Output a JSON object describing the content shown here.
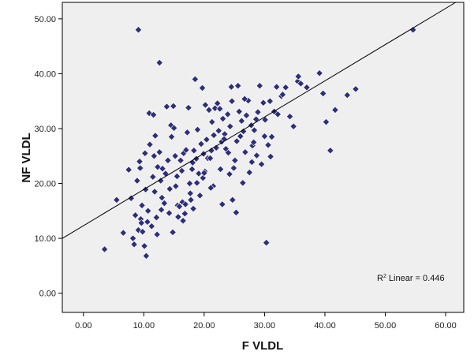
{
  "chart_data": {
    "type": "scatter",
    "xlabel": "F VLDL",
    "ylabel": "NF VLDL",
    "xlim": [
      -3.5,
      63
    ],
    "ylim": [
      -3.5,
      53
    ],
    "x_ticks": [
      "0.00",
      "10.00",
      "20.00",
      "30.00",
      "40.00",
      "50.00",
      "60.00"
    ],
    "y_ticks": [
      "0.00",
      "10.00",
      "20.00",
      "30.00",
      "40.00",
      "50.00"
    ],
    "grid": false,
    "annotation": {
      "prefix": "R",
      "sup": "2",
      "suffix": " Linear = 0.446"
    },
    "fit_line": {
      "intercept": 12.3,
      "slope": 0.66
    },
    "colors": {
      "point": "#2e2e7a",
      "plot_bg": "#efefef",
      "line": "#000000"
    },
    "points": [
      [
        9.1,
        48.0
      ],
      [
        54.6,
        48.0
      ],
      [
        12.6,
        42.0
      ],
      [
        3.5,
        8.0
      ],
      [
        5.5,
        17.0
      ],
      [
        6.6,
        11.0
      ],
      [
        7.5,
        22.5
      ],
      [
        7.9,
        17.3
      ],
      [
        8.2,
        10.0
      ],
      [
        8.4,
        8.9
      ],
      [
        8.6,
        14.2
      ],
      [
        8.9,
        20.5
      ],
      [
        9.1,
        11.5
      ],
      [
        9.3,
        24.0
      ],
      [
        9.4,
        22.8
      ],
      [
        9.5,
        13.5
      ],
      [
        9.7,
        16.0
      ],
      [
        9.8,
        11.2
      ],
      [
        10.1,
        8.6
      ],
      [
        10.2,
        25.5
      ],
      [
        10.4,
        6.8
      ],
      [
        10.6,
        13.0
      ],
      [
        10.7,
        15.0
      ],
      [
        10.9,
        32.8
      ],
      [
        11.0,
        27.1
      ],
      [
        11.3,
        12.2
      ],
      [
        11.5,
        21.2
      ],
      [
        11.6,
        32.5
      ],
      [
        11.7,
        25.0
      ],
      [
        11.8,
        18.5
      ],
      [
        12.1,
        13.8
      ],
      [
        12.3,
        23.0
      ],
      [
        12.6,
        25.7
      ],
      [
        12.8,
        20.5
      ],
      [
        13.0,
        17.4
      ],
      [
        13.1,
        22.7
      ],
      [
        13.4,
        16.4
      ],
      [
        13.8,
        34.0
      ],
      [
        14.0,
        24.2
      ],
      [
        14.2,
        14.6
      ],
      [
        14.5,
        30.6
      ],
      [
        14.8,
        11.1
      ],
      [
        14.9,
        34.1
      ],
      [
        15.0,
        30.1
      ],
      [
        15.2,
        25.0
      ],
      [
        15.3,
        19.5
      ],
      [
        15.5,
        21.3
      ],
      [
        15.6,
        16.0
      ],
      [
        15.9,
        15.8
      ],
      [
        16.1,
        24.2
      ],
      [
        16.3,
        22.3
      ],
      [
        16.4,
        16.6
      ],
      [
        16.6,
        25.5
      ],
      [
        16.8,
        14.5
      ],
      [
        17.0,
        26.1
      ],
      [
        17.2,
        29.3
      ],
      [
        17.4,
        33.8
      ],
      [
        17.6,
        20.0
      ],
      [
        17.8,
        17.0
      ],
      [
        18.0,
        22.6
      ],
      [
        18.1,
        23.8
      ],
      [
        18.3,
        26.0
      ],
      [
        18.5,
        39.0
      ],
      [
        18.7,
        24.5
      ],
      [
        18.9,
        29.8
      ],
      [
        19.1,
        21.8
      ],
      [
        19.3,
        17.8
      ],
      [
        19.5,
        27.2
      ],
      [
        19.7,
        37.4
      ],
      [
        19.9,
        25.4
      ],
      [
        20.1,
        22.2
      ],
      [
        20.4,
        28.0
      ],
      [
        20.6,
        24.6
      ],
      [
        20.8,
        33.4
      ],
      [
        21.0,
        24.6
      ],
      [
        21.3,
        31.2
      ],
      [
        21.5,
        19.5
      ],
      [
        21.6,
        28.8
      ],
      [
        21.8,
        33.7
      ],
      [
        22.0,
        26.5
      ],
      [
        22.2,
        34.6
      ],
      [
        22.4,
        29.6
      ],
      [
        22.7,
        22.6
      ],
      [
        22.9,
        27.6
      ],
      [
        23.1,
        31.8
      ],
      [
        23.4,
        29.0
      ],
      [
        23.6,
        26.3
      ],
      [
        23.9,
        32.6
      ],
      [
        24.0,
        25.6
      ],
      [
        24.2,
        21.7
      ],
      [
        24.5,
        37.6
      ],
      [
        24.7,
        17.0
      ],
      [
        24.9,
        22.8
      ],
      [
        25.1,
        24.2
      ],
      [
        25.4,
        27.7
      ],
      [
        25.6,
        37.8
      ],
      [
        25.8,
        33.1
      ],
      [
        26.0,
        28.6
      ],
      [
        26.2,
        31.4
      ],
      [
        26.5,
        29.5
      ],
      [
        26.8,
        25.7
      ],
      [
        27.0,
        32.4
      ],
      [
        27.3,
        35.1
      ],
      [
        27.5,
        22.0
      ],
      [
        27.8,
        30.6
      ],
      [
        28.0,
        26.9
      ],
      [
        28.3,
        29.7
      ],
      [
        28.6,
        31.7
      ],
      [
        28.9,
        33.0
      ],
      [
        29.2,
        37.8
      ],
      [
        29.5,
        23.5
      ],
      [
        29.8,
        34.7
      ],
      [
        30.1,
        31.6
      ],
      [
        30.3,
        9.2
      ],
      [
        30.6,
        27.0
      ],
      [
        30.9,
        35.0
      ],
      [
        31.2,
        28.5
      ],
      [
        31.6,
        33.1
      ],
      [
        32.0,
        37.6
      ],
      [
        32.2,
        32.6
      ],
      [
        32.8,
        35.9
      ],
      [
        33.5,
        37.5
      ],
      [
        34.2,
        32.2
      ],
      [
        34.8,
        30.4
      ],
      [
        35.5,
        38.6
      ],
      [
        36.0,
        38.2
      ],
      [
        37.0,
        37.5
      ],
      [
        39.1,
        40.1
      ],
      [
        39.7,
        36.4
      ],
      [
        40.2,
        31.2
      ],
      [
        40.9,
        26.0
      ],
      [
        41.7,
        33.4
      ],
      [
        43.7,
        36.1
      ],
      [
        45.1,
        37.2
      ],
      [
        9.6,
        12.8
      ],
      [
        10.3,
        18.9
      ],
      [
        11.9,
        28.7
      ],
      [
        12.2,
        10.7
      ],
      [
        13.6,
        21.8
      ],
      [
        14.3,
        19.0
      ],
      [
        15.7,
        13.9
      ],
      [
        16.9,
        16.2
      ],
      [
        17.7,
        18.2
      ],
      [
        18.2,
        15.4
      ],
      [
        19.8,
        21.0
      ],
      [
        20.2,
        34.3
      ],
      [
        21.2,
        26.0
      ],
      [
        22.6,
        33.6
      ],
      [
        23.0,
        16.2
      ],
      [
        24.3,
        30.4
      ],
      [
        25.3,
        14.7
      ],
      [
        26.7,
        35.4
      ],
      [
        27.9,
        23.9
      ],
      [
        28.7,
        25.1
      ],
      [
        30.0,
        28.6
      ],
      [
        31.0,
        24.9
      ],
      [
        33.0,
        36.2
      ],
      [
        35.6,
        39.5
      ],
      [
        12.9,
        15.2
      ],
      [
        14.6,
        28.5
      ],
      [
        16.5,
        13.2
      ],
      [
        18.8,
        20.1
      ],
      [
        20.0,
        21.9
      ],
      [
        21.1,
        19.2
      ],
      [
        23.3,
        28.1
      ],
      [
        24.6,
        35.0
      ],
      [
        26.4,
        20.1
      ],
      [
        28.2,
        27.5
      ]
    ]
  }
}
